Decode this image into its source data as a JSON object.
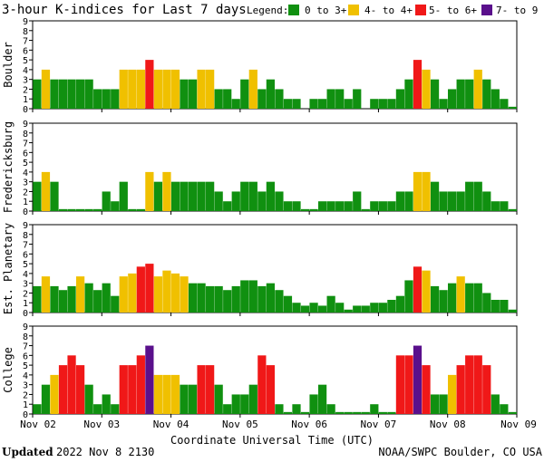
{
  "header": {
    "title": "3-hour K-indices for Last 7 days",
    "legend_title": "Legend:",
    "legend": [
      {
        "label": "0 to 3+",
        "color": "#109010"
      },
      {
        "label": "4- to 4+",
        "color": "#f0c000"
      },
      {
        "label": "5- to 6+",
        "color": "#f01818"
      },
      {
        "label": "7- to 9",
        "color": "#5a108c"
      }
    ]
  },
  "footer": {
    "updated_label": "Updated",
    "updated_value": "2022 Nov  8 2130",
    "credit": "NOAA/SWPC Boulder, CO USA"
  },
  "chart_data": [
    {
      "type": "bar",
      "panel": "Boulder",
      "ylabel": "Boulder",
      "ylim": [
        0,
        9
      ],
      "yticks": [
        0,
        1,
        2,
        3,
        4,
        5,
        6,
        7,
        8,
        9
      ],
      "xlabel": "Coordinate Universal Time (UTC)",
      "xticks": [
        "Nov 02",
        "Nov 03",
        "Nov 04",
        "Nov 05",
        "Nov 06",
        "Nov 07",
        "Nov 08",
        "Nov 09"
      ],
      "values": [
        3,
        4,
        3,
        3,
        3,
        3,
        3,
        2,
        2,
        2,
        4,
        4,
        4,
        5,
        4,
        4,
        4,
        3,
        3,
        4,
        4,
        2,
        2,
        1,
        3,
        4,
        2,
        3,
        2,
        1,
        1,
        0,
        1,
        1,
        2,
        2,
        1,
        2,
        0,
        1,
        1,
        1,
        2,
        3,
        5,
        4,
        3,
        1,
        2,
        3,
        3,
        4,
        3,
        2,
        1,
        0.2
      ]
    },
    {
      "type": "bar",
      "panel": "Fredericksburg",
      "ylabel": "Fredericksburg",
      "ylim": [
        0,
        9
      ],
      "yticks": [
        0,
        1,
        2,
        3,
        4,
        5,
        6,
        7,
        8,
        9
      ],
      "values": [
        3,
        4,
        3,
        0.2,
        0.2,
        0.2,
        0.2,
        0.2,
        2,
        1,
        3,
        0.2,
        0.2,
        4,
        3,
        4,
        3,
        3,
        3,
        3,
        3,
        2,
        1,
        2,
        3,
        3,
        2,
        3,
        2,
        1,
        1,
        0.2,
        0.2,
        1,
        1,
        1,
        1,
        2,
        0.2,
        1,
        1,
        1,
        2,
        2,
        4,
        4,
        3,
        2,
        2,
        2,
        3,
        3,
        2,
        1,
        1,
        0.2
      ]
    },
    {
      "type": "bar",
      "panel": "Est. Planetary",
      "ylabel": "Est. Planetary",
      "ylim": [
        0,
        9
      ],
      "yticks": [
        0,
        1,
        2,
        3,
        4,
        5,
        6,
        7,
        8,
        9
      ],
      "values": [
        2.7,
        3.7,
        2.7,
        2.3,
        2.7,
        3.7,
        3,
        2.3,
        3,
        1.7,
        3.7,
        4,
        4.7,
        5,
        3.7,
        4.3,
        4,
        3.7,
        3,
        3,
        2.7,
        2.7,
        2.3,
        2.7,
        3.3,
        3.3,
        2.7,
        3,
        2.3,
        1.7,
        1,
        0.7,
        1,
        0.7,
        1.7,
        1,
        0.3,
        0.7,
        0.7,
        1,
        1,
        1.3,
        1.7,
        3.3,
        4.7,
        4.3,
        2.7,
        2.3,
        3,
        3.7,
        3,
        3,
        2,
        1.3,
        1.3,
        0.3
      ]
    },
    {
      "type": "bar",
      "panel": "College",
      "ylabel": "College",
      "ylim": [
        0,
        9
      ],
      "yticks": [
        0,
        1,
        2,
        3,
        4,
        5,
        6,
        7,
        8,
        9
      ],
      "values": [
        1,
        3,
        4,
        5,
        6,
        5,
        3,
        1,
        2,
        1,
        5,
        5,
        6,
        7,
        4,
        4,
        4,
        3,
        3,
        5,
        5,
        3,
        1,
        2,
        2,
        3,
        6,
        5,
        1,
        0.2,
        1,
        0.2,
        2,
        3,
        1,
        0.2,
        0.2,
        0.2,
        0.2,
        1,
        0.2,
        0.2,
        6,
        6,
        7,
        5,
        2,
        2,
        4,
        5,
        6,
        6,
        5,
        2,
        1,
        0.2
      ]
    }
  ]
}
